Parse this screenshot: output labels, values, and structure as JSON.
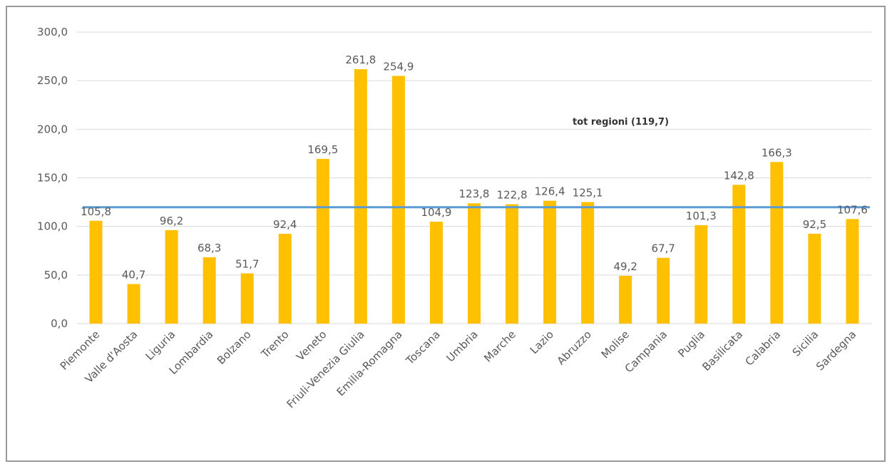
{
  "chart_data": {
    "type": "bar",
    "categories": [
      "Piemonte",
      "Valle d'Aosta",
      "Liguria",
      "Lombardia",
      "Bolzano",
      "Trento",
      "Veneto",
      "Friuli-Venezia Giulia",
      "Emilia-Romagna",
      "Toscana",
      "Umbria",
      "Marche",
      "Lazio",
      "Abruzzo",
      "Molise",
      "Campania",
      "Puglia",
      "Basilicata",
      "Calabria",
      "Sicilia",
      "Sardegna"
    ],
    "values": [
      105.8,
      40.7,
      96.2,
      68.3,
      51.7,
      92.4,
      169.5,
      261.8,
      254.9,
      104.9,
      123.8,
      122.8,
      126.4,
      125.1,
      49.2,
      67.7,
      101.3,
      142.8,
      166.3,
      92.5,
      107.6
    ],
    "value_labels": [
      "105,8",
      "40,7",
      "96,2",
      "68,3",
      "51,7",
      "92,4",
      "169,5",
      "261,8",
      "254,9",
      "104,9",
      "123,8",
      "122,8",
      "126,4",
      "125,1",
      "49,2",
      "67,7",
      "101,3",
      "142,8",
      "166,3",
      "92,5",
      "107,6"
    ],
    "yticks": [
      0,
      50,
      100,
      150,
      200,
      250,
      300
    ],
    "ytick_labels": [
      "0,0",
      "50,0",
      "100,0",
      "150,0",
      "200,0",
      "250,0",
      "300,0"
    ],
    "ylim": [
      0,
      300
    ],
    "reference_line": {
      "value": 119.7,
      "label": "tot regioni (119,7)"
    },
    "grid": true,
    "legend": "none",
    "colors": {
      "bars": "#ffc000",
      "reference_line": "#5b9bd5",
      "grid": "#d9d9d9",
      "text": "#595959"
    }
  }
}
